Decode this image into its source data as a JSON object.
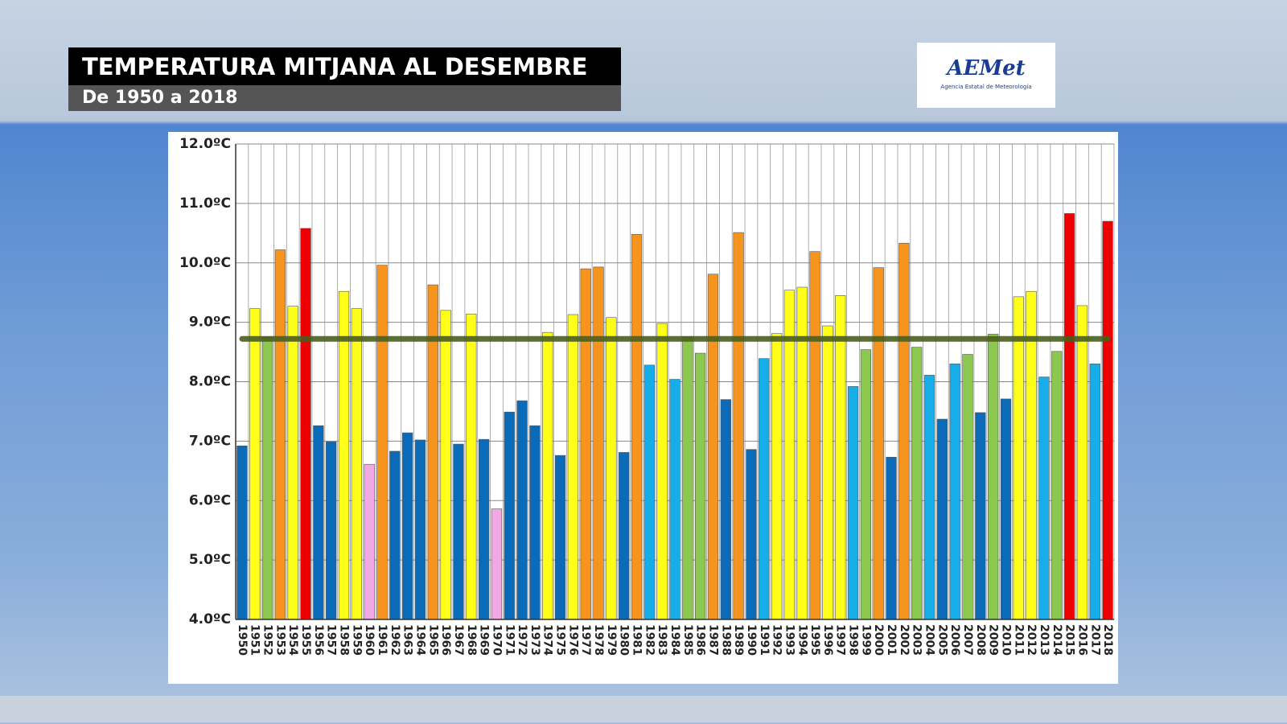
{
  "header": {
    "title": "TEMPERATURA MITJANA AL DESEMBRE",
    "subtitle": "De 1950 a 2018"
  },
  "logo": {
    "name": "AEMet",
    "tagline": "Agencia Estatal de Meteorología"
  },
  "chart_data": {
    "type": "bar",
    "categories": [
      "1950",
      "1951",
      "1952",
      "1953",
      "1954",
      "1955",
      "1956",
      "1957",
      "1958",
      "1959",
      "1960",
      "1961",
      "1962",
      "1963",
      "1964",
      "1965",
      "1966",
      "1967",
      "1968",
      "1969",
      "1970",
      "1971",
      "1972",
      "1973",
      "1974",
      "1975",
      "1976",
      "1977",
      "1978",
      "1979",
      "1980",
      "1981",
      "1982",
      "1983",
      "1984",
      "1985",
      "1986",
      "1987",
      "1988",
      "1989",
      "1990",
      "1991",
      "1992",
      "1993",
      "1994",
      "1995",
      "1996",
      "1997",
      "1998",
      "1999",
      "2000",
      "2001",
      "2002",
      "2003",
      "2004",
      "2005",
      "2006",
      "2007",
      "2008",
      "2009",
      "2010",
      "2011",
      "2012",
      "2013",
      "2014",
      "2015",
      "2016",
      "2017",
      "2018"
    ],
    "values": [
      6.92,
      9.23,
      8.75,
      10.22,
      9.27,
      10.58,
      7.26,
      6.99,
      9.52,
      9.23,
      6.61,
      9.96,
      6.83,
      7.14,
      7.02,
      9.63,
      9.2,
      6.95,
      9.14,
      7.03,
      5.86,
      7.49,
      7.68,
      7.26,
      8.83,
      6.76,
      9.13,
      9.9,
      9.93,
      9.08,
      6.81,
      10.48,
      8.28,
      8.98,
      8.04,
      8.76,
      8.48,
      9.81,
      7.7,
      10.51,
      6.86,
      8.39,
      8.81,
      9.54,
      9.59,
      10.19,
      8.94,
      9.45,
      7.92,
      8.54,
      9.92,
      6.73,
      10.33,
      8.58,
      8.11,
      7.37,
      8.3,
      8.46,
      7.48,
      8.8,
      7.71,
      9.43,
      9.52,
      8.08,
      8.51,
      10.83,
      9.28,
      8.3,
      10.7
    ],
    "colors": [
      "#0b6bb8",
      "#ffff1a",
      "#8cc850",
      "#f7941d",
      "#ffff1a",
      "#ee0000",
      "#0b6bb8",
      "#0b6bb8",
      "#ffff1a",
      "#ffff1a",
      "#f2a8e2",
      "#f7941d",
      "#0b6bb8",
      "#0b6bb8",
      "#0b6bb8",
      "#f7941d",
      "#ffff1a",
      "#0b6bb8",
      "#ffff1a",
      "#0b6bb8",
      "#f2a8e2",
      "#0b6bb8",
      "#0b6bb8",
      "#0b6bb8",
      "#ffff1a",
      "#0b6bb8",
      "#ffff1a",
      "#f7941d",
      "#f7941d",
      "#ffff1a",
      "#0b6bb8",
      "#f7941d",
      "#17ade8",
      "#ffff1a",
      "#17ade8",
      "#8cc850",
      "#8cc850",
      "#f7941d",
      "#0b6bb8",
      "#f7941d",
      "#0b6bb8",
      "#17ade8",
      "#ffff1a",
      "#ffff1a",
      "#ffff1a",
      "#f7941d",
      "#ffff1a",
      "#ffff1a",
      "#17ade8",
      "#8cc850",
      "#f7941d",
      "#0b6bb8",
      "#f7941d",
      "#8cc850",
      "#17ade8",
      "#0b6bb8",
      "#17ade8",
      "#8cc850",
      "#0b6bb8",
      "#8cc850",
      "#0b6bb8",
      "#ffff1a",
      "#ffff1a",
      "#17ade8",
      "#8cc850",
      "#ee0000",
      "#ffff1a",
      "#17ade8",
      "#ee0000"
    ],
    "ylim": [
      4,
      12
    ],
    "yticks": [
      {
        "value": 4,
        "label": "4.0ºC"
      },
      {
        "value": 5,
        "label": "5.0ºC"
      },
      {
        "value": 6,
        "label": "6.0ºC"
      },
      {
        "value": 7,
        "label": "7.0ºC"
      },
      {
        "value": 8,
        "label": "8.0ºC"
      },
      {
        "value": 9,
        "label": "9.0ºC"
      },
      {
        "value": 10,
        "label": "10.0ºC"
      },
      {
        "value": 11,
        "label": "11.0ºC"
      },
      {
        "value": 12,
        "label": "12.0ºC"
      }
    ],
    "grid": true,
    "reference_line": {
      "value": 8.72,
      "color": "#4b5e20"
    }
  }
}
